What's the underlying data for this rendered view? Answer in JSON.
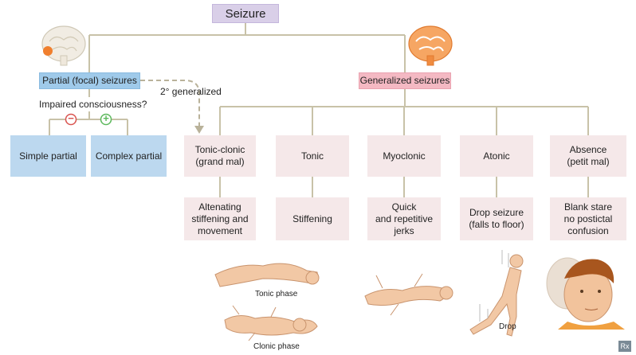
{
  "title": "Seizure",
  "partial": {
    "label": "Partial (focal) seizures",
    "question": "Impaired consciousness?",
    "minus": "−",
    "plus": "+",
    "simple": "Simple partial",
    "complex": "Complex partial"
  },
  "secondary": "2° generalized",
  "generalized": {
    "label": "Generalized seizures",
    "types": [
      {
        "name": [
          "Tonic-clonic",
          "(grand mal)"
        ],
        "desc": [
          "Altenating",
          "stiffening and",
          "movement"
        ]
      },
      {
        "name": [
          "Tonic"
        ],
        "desc": [
          "Stiffening"
        ]
      },
      {
        "name": [
          "Myoclonic"
        ],
        "desc": [
          "Quick",
          "and repetitive",
          "jerks"
        ]
      },
      {
        "name": [
          "Atonic"
        ],
        "desc": [
          "Drop seizure",
          "(falls to floor)"
        ]
      },
      {
        "name": [
          "Absence",
          "(petit mal)"
        ],
        "desc": [
          "Blank stare",
          "no postictal",
          "confusion"
        ]
      }
    ]
  },
  "captions": {
    "tonic_phase": "Tonic phase",
    "clonic_phase": "Clonic phase",
    "drop": "Drop"
  },
  "colors": {
    "line": "#c8c2a8",
    "partial": "#9fcaea",
    "generalized": "#f4b9c3",
    "title": "#d9cfe8",
    "card": "#f5e8e9",
    "minus": "#d9534f",
    "plus": "#5cb85c",
    "skin": "#f2c8a5"
  },
  "logo": "Rx"
}
